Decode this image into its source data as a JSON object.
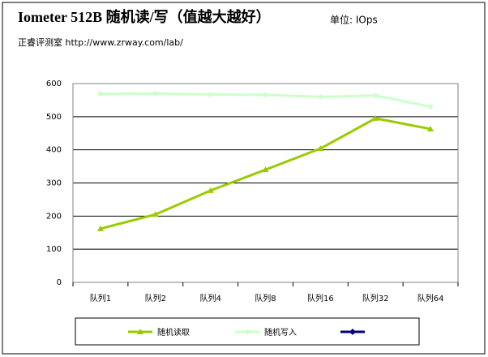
{
  "header": {
    "title": "Iometer 512B 随机读/写（值越大越好）",
    "unit": "单位: IOps",
    "source": "正睿评测室 http://www.zrway.com/lab/"
  },
  "chart_data": {
    "type": "line",
    "categories": [
      "队列1",
      "队列2",
      "队列4",
      "队列8",
      "队列16",
      "队列32",
      "队列64"
    ],
    "series": [
      {
        "name": "随机读取",
        "color": "#99cc00",
        "marker": "triangle",
        "values": [
          162,
          205,
          277,
          340,
          404,
          495,
          463
        ]
      },
      {
        "name": "随机写入",
        "color": "#ccffcc",
        "marker": "circle",
        "values": [
          569,
          570,
          567,
          566,
          560,
          564,
          530
        ]
      },
      {
        "color": "#000080",
        "marker": "diamond",
        "values": [
          null,
          null,
          null,
          null,
          null,
          null,
          null
        ]
      }
    ],
    "ylim": [
      0,
      600
    ],
    "yticks": [
      0,
      100,
      200,
      300,
      400,
      500,
      600
    ],
    "grid": true
  }
}
